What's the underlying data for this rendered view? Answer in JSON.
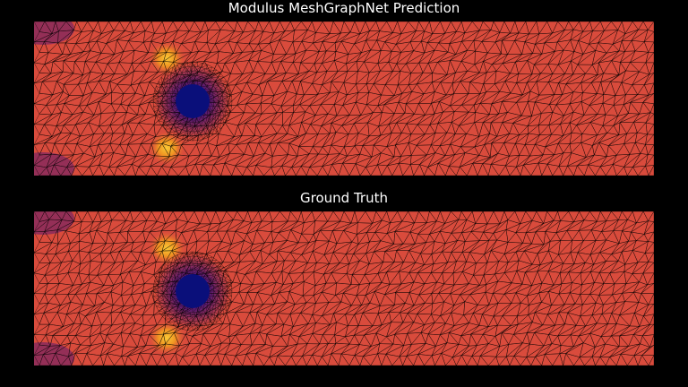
{
  "panels": [
    {
      "title": "Modulus MeshGraphNet Prediction"
    },
    {
      "title": "Ground Truth"
    }
  ],
  "colors": {
    "background": "#000000",
    "field_base": "#d94b3c",
    "field_high": "#f39c1f",
    "field_peak": "#fdd835",
    "field_low": "#5b1a6e",
    "obstacle": "#0a0f7a",
    "mesh_line": "#000000"
  },
  "colormap": "inferno",
  "obstacle_shape": "circle"
}
